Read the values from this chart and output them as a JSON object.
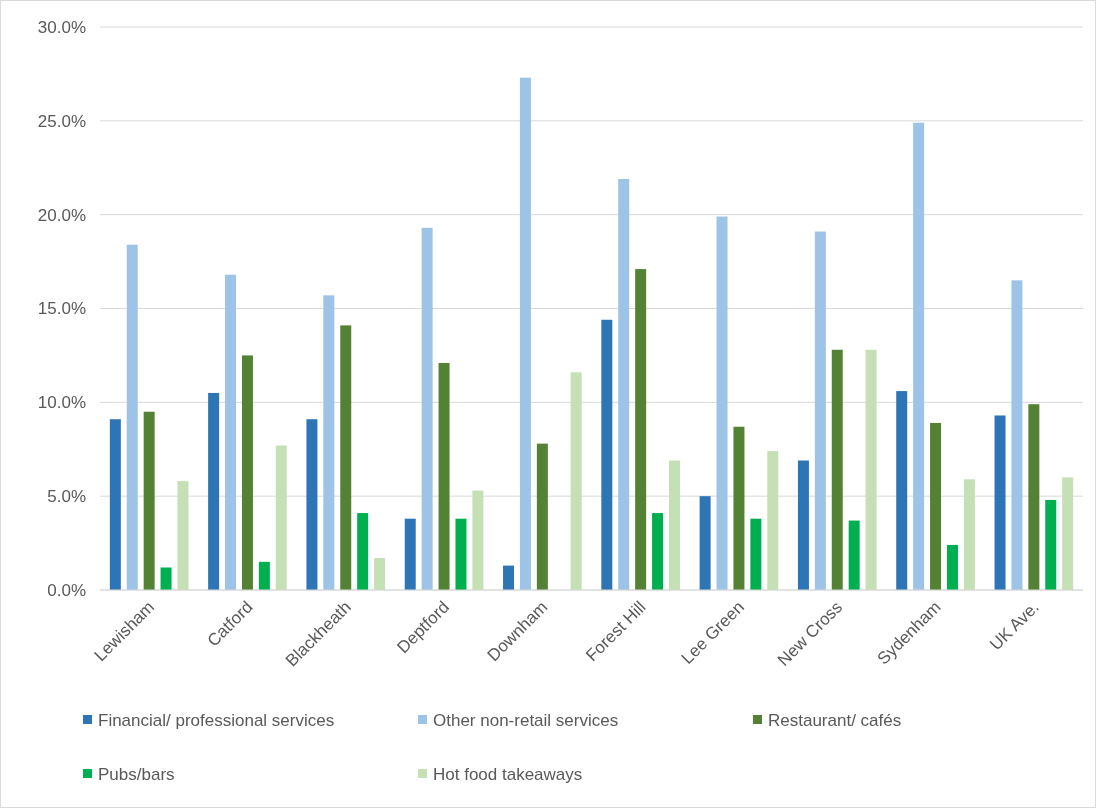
{
  "chart_data": {
    "type": "bar",
    "categories": [
      "Lewisham",
      "Catford",
      "Blackheath",
      "Deptford",
      "Downham",
      "Forest Hill",
      "Lee Green",
      "New Cross",
      "Sydenham",
      "UK Ave."
    ],
    "series": [
      {
        "name": "Financial/ professional services",
        "color": "#2e75b6",
        "values": [
          9.1,
          10.5,
          9.1,
          3.8,
          1.3,
          14.4,
          5.0,
          6.9,
          10.6,
          9.3
        ]
      },
      {
        "name": "Other non-retail services",
        "color": "#9dc3e6",
        "values": [
          18.4,
          16.8,
          15.7,
          19.3,
          27.3,
          21.9,
          19.9,
          19.1,
          24.9,
          16.5
        ]
      },
      {
        "name": "Restaurant/ cafés",
        "color": "#548235",
        "values": [
          9.5,
          12.5,
          14.1,
          12.1,
          7.8,
          17.1,
          8.7,
          12.8,
          8.9,
          9.9
        ]
      },
      {
        "name": "Pubs/bars",
        "color": "#00b050",
        "values": [
          1.2,
          1.5,
          4.1,
          3.8,
          0,
          4.1,
          3.8,
          3.7,
          2.4,
          4.8
        ]
      },
      {
        "name": "Hot food takeaways",
        "color": "#c5e0b4",
        "values": [
          5.8,
          7.7,
          1.7,
          5.3,
          11.6,
          6.9,
          7.4,
          12.8,
          5.9,
          6.0
        ]
      }
    ],
    "ylim": [
      0,
      30
    ],
    "yticks": [
      {
        "value": 0,
        "label": "0.0%"
      },
      {
        "value": 5,
        "label": "5.0%"
      },
      {
        "value": 10,
        "label": "10.0%"
      },
      {
        "value": 15,
        "label": "15.0%"
      },
      {
        "value": 20,
        "label": "20.0%"
      },
      {
        "value": 25,
        "label": "25.0%"
      },
      {
        "value": 30,
        "label": "30.0%"
      }
    ],
    "grid": "y",
    "legend": "bottom"
  }
}
